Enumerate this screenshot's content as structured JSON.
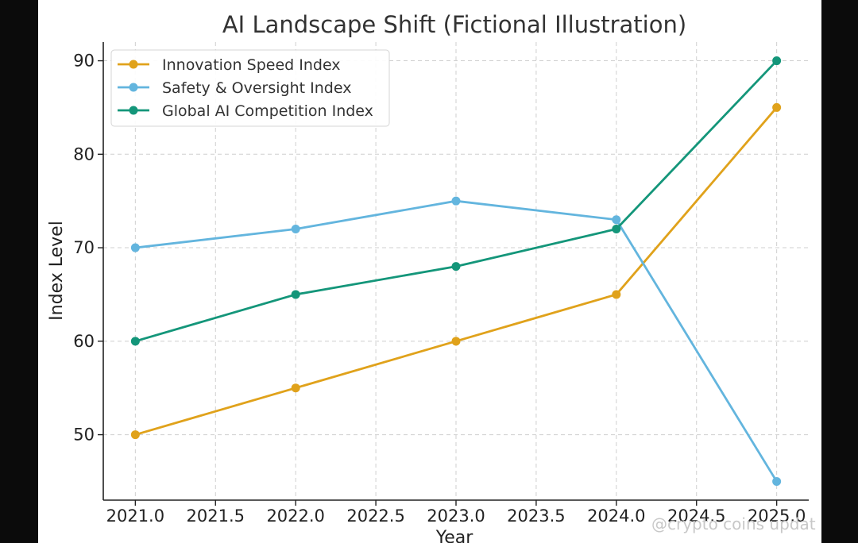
{
  "chart_data": {
    "type": "line",
    "title": "AI Landscape Shift (Fictional Illustration)",
    "xlabel": "Year",
    "ylabel": "Index Level",
    "x": [
      2021.0,
      2022.0,
      2023.0,
      2024.0,
      2025.0
    ],
    "xlim": [
      2020.8,
      2025.2
    ],
    "ylim": [
      43,
      92
    ],
    "xticks": [
      "2021.0",
      "2021.5",
      "2022.0",
      "2022.5",
      "2023.0",
      "2023.5",
      "2024.0",
      "2024.5",
      "2025.0"
    ],
    "yticks": [
      "50",
      "60",
      "70",
      "80",
      "90"
    ],
    "grid": true,
    "legend_position": "top-left",
    "series": [
      {
        "name": "Innovation Speed Index",
        "color": "#E0A21B",
        "values": [
          50,
          55,
          60,
          65,
          85
        ]
      },
      {
        "name": "Safety & Oversight Index",
        "color": "#63B5DE",
        "values": [
          70,
          72,
          75,
          73,
          45
        ]
      },
      {
        "name": "Global AI Competition Index",
        "color": "#14967A",
        "values": [
          60,
          65,
          68,
          72,
          90
        ]
      }
    ]
  },
  "watermark": {
    "text": "@crypto coins updat"
  }
}
